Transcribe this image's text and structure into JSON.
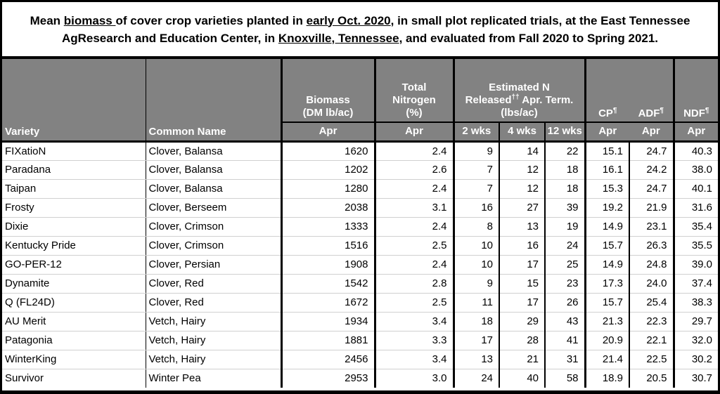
{
  "title": {
    "segments": [
      {
        "text": "Mean ",
        "underline": false
      },
      {
        "text": "biomass ",
        "underline": true
      },
      {
        "text": "of cover crop varieties planted in ",
        "underline": false
      },
      {
        "text": "early Oct. 2020",
        "underline": true
      },
      {
        "text": ", in small plot replicated trials, at the East Tennessee AgResearch and Education Center, in ",
        "underline": false
      },
      {
        "text": "Knoxville, Tennessee",
        "underline": true
      },
      {
        "text": ", and evaluated from Fall 2020 to Spring 2021.",
        "underline": false
      }
    ]
  },
  "table": {
    "header": {
      "variety": "Variety",
      "common_name": "Common Name",
      "biomass": "Biomass (DM lb/ac)",
      "total_nitrogen": "Total Nitrogen (%)",
      "estimated_n": {
        "pre": "Estimated N Released",
        "sup": "††",
        "post": " Apr. Term. (lbs/ac)"
      },
      "cp": {
        "label": "CP",
        "sup": "¶"
      },
      "adf": {
        "label": "ADF",
        "sup": "¶"
      },
      "ndf": {
        "label": "NDF",
        "sup": "¶"
      },
      "sub": {
        "apr": "Apr",
        "wks2": "2 wks",
        "wks4": "4 wks",
        "wks12": "12 wks"
      }
    },
    "rows": [
      {
        "variety": "FIXatioN",
        "common_name": "Clover, Balansa",
        "biomass": "1620",
        "total_n": "2.4",
        "n_2wks": "9",
        "n_4wks": "14",
        "n_12wks": "22",
        "cp": "15.1",
        "adf": "24.7",
        "ndf": "40.3"
      },
      {
        "variety": "Paradana",
        "common_name": "Clover, Balansa",
        "biomass": "1202",
        "total_n": "2.6",
        "n_2wks": "7",
        "n_4wks": "12",
        "n_12wks": "18",
        "cp": "16.1",
        "adf": "24.2",
        "ndf": "38.0"
      },
      {
        "variety": "Taipan",
        "common_name": "Clover, Balansa",
        "biomass": "1280",
        "total_n": "2.4",
        "n_2wks": "7",
        "n_4wks": "12",
        "n_12wks": "18",
        "cp": "15.3",
        "adf": "24.7",
        "ndf": "40.1"
      },
      {
        "variety": "Frosty",
        "common_name": "Clover, Berseem",
        "biomass": "2038",
        "total_n": "3.1",
        "n_2wks": "16",
        "n_4wks": "27",
        "n_12wks": "39",
        "cp": "19.2",
        "adf": "21.9",
        "ndf": "31.6"
      },
      {
        "variety": "Dixie",
        "common_name": "Clover, Crimson",
        "biomass": "1333",
        "total_n": "2.4",
        "n_2wks": "8",
        "n_4wks": "13",
        "n_12wks": "19",
        "cp": "14.9",
        "adf": "23.1",
        "ndf": "35.4"
      },
      {
        "variety": "Kentucky Pride",
        "common_name": "Clover, Crimson",
        "biomass": "1516",
        "total_n": "2.5",
        "n_2wks": "10",
        "n_4wks": "16",
        "n_12wks": "24",
        "cp": "15.7",
        "adf": "26.3",
        "ndf": "35.5"
      },
      {
        "variety": "GO-PER-12",
        "common_name": "Clover, Persian",
        "biomass": "1908",
        "total_n": "2.4",
        "n_2wks": "10",
        "n_4wks": "17",
        "n_12wks": "25",
        "cp": "14.9",
        "adf": "24.8",
        "ndf": "39.0"
      },
      {
        "variety": "Dynamite",
        "common_name": "Clover, Red",
        "biomass": "1542",
        "total_n": "2.8",
        "n_2wks": "9",
        "n_4wks": "15",
        "n_12wks": "23",
        "cp": "17.3",
        "adf": "24.0",
        "ndf": "37.4"
      },
      {
        "variety": "Q (FL24D)",
        "common_name": "Clover, Red",
        "biomass": "1672",
        "total_n": "2.5",
        "n_2wks": "11",
        "n_4wks": "17",
        "n_12wks": "26",
        "cp": "15.7",
        "adf": "25.4",
        "ndf": "38.3"
      },
      {
        "variety": "AU Merit",
        "common_name": "Vetch, Hairy",
        "biomass": "1934",
        "total_n": "3.4",
        "n_2wks": "18",
        "n_4wks": "29",
        "n_12wks": "43",
        "cp": "21.3",
        "adf": "22.3",
        "ndf": "29.7"
      },
      {
        "variety": "Patagonia",
        "common_name": "Vetch, Hairy",
        "biomass": "1881",
        "total_n": "3.3",
        "n_2wks": "17",
        "n_4wks": "28",
        "n_12wks": "41",
        "cp": "20.9",
        "adf": "22.1",
        "ndf": "32.0"
      },
      {
        "variety": "WinterKing",
        "common_name": "Vetch, Hairy",
        "biomass": "2456",
        "total_n": "3.4",
        "n_2wks": "13",
        "n_4wks": "21",
        "n_12wks": "31",
        "cp": "21.4",
        "adf": "22.5",
        "ndf": "30.2"
      },
      {
        "variety": "Survivor",
        "common_name": "Winter Pea",
        "biomass": "2953",
        "total_n": "3.0",
        "n_2wks": "24",
        "n_4wks": "40",
        "n_12wks": "58",
        "cp": "18.9",
        "adf": "20.5",
        "ndf": "30.7"
      }
    ]
  },
  "colors": {
    "header_bg": "#828282",
    "header_text": "#ffffff",
    "border": "#000000",
    "row_divider": "#d0d0d0"
  }
}
